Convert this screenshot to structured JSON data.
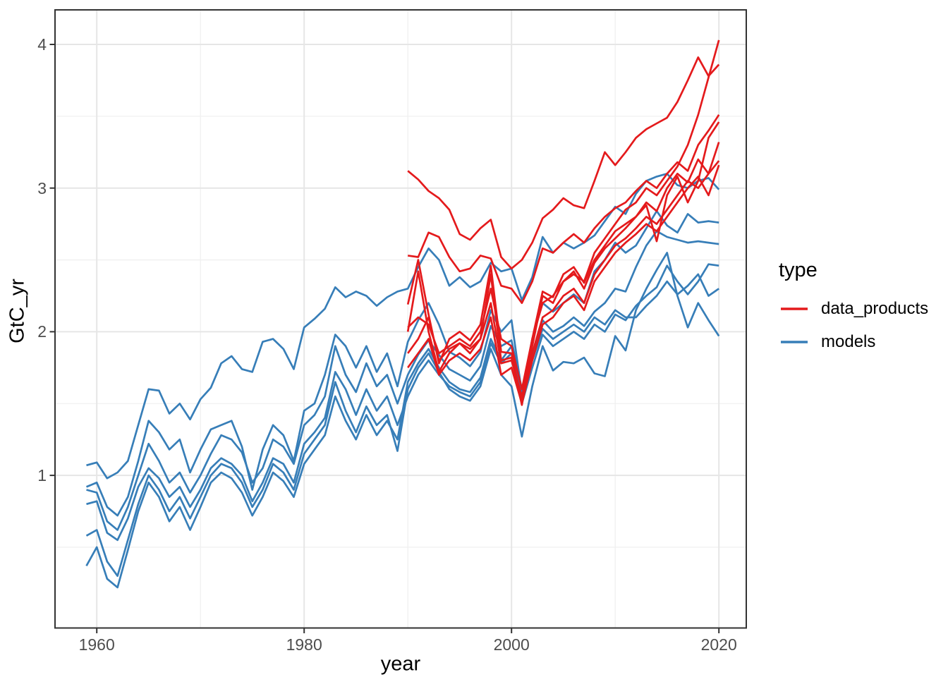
{
  "legend": {
    "title": "type",
    "items": [
      {
        "label": "data_products",
        "color": "#E41A1C"
      },
      {
        "label": "models",
        "color": "#377EB8"
      }
    ]
  },
  "chart_data": {
    "type": "line",
    "title": "",
    "xlabel": "year",
    "ylabel": "GtC_yr",
    "xlim": [
      1956,
      2022.6
    ],
    "ylim": [
      -0.06,
      4.24
    ],
    "x_ticks": [
      1960,
      1980,
      2000,
      2020
    ],
    "y_ticks": [
      4,
      3,
      2,
      1
    ],
    "x_minor_ticks": [
      1970,
      1990,
      2010
    ],
    "y_minor_ticks": [
      0.5,
      1.5,
      2.5,
      3.5
    ],
    "grid": true,
    "legend_position": "right",
    "colors": {
      "models": "#377EB8",
      "data_products": "#E41A1C"
    },
    "series": [
      {
        "name": "model_1",
        "group": "models",
        "start_year": 1959,
        "values": [
          1.07,
          1.09,
          0.98,
          1.02,
          1.1,
          1.35,
          1.6,
          1.59,
          1.43,
          1.5,
          1.39,
          1.53,
          1.61,
          1.78,
          1.83,
          1.74,
          1.72,
          1.93,
          1.95,
          1.88,
          1.74,
          2.03,
          2.09,
          2.16,
          2.31,
          2.24,
          2.28,
          2.25,
          2.18,
          2.24,
          2.28,
          2.3,
          2.45,
          2.58,
          2.5,
          2.32,
          2.38,
          2.31,
          2.35,
          2.48,
          2.42,
          2.44,
          2.22,
          2.38,
          2.66,
          2.55,
          2.62,
          2.58,
          2.62,
          2.67,
          2.77,
          2.87,
          2.82,
          2.96,
          3.05,
          3.08,
          3.1,
          3.02,
          3.0,
          3.05,
          3.07,
          2.99
        ]
      },
      {
        "name": "model_2",
        "group": "models",
        "start_year": 1959,
        "values": [
          0.92,
          0.95,
          0.78,
          0.72,
          0.85,
          1.1,
          1.38,
          1.3,
          1.18,
          1.25,
          1.02,
          1.18,
          1.32,
          1.35,
          1.38,
          1.2,
          0.9,
          1.18,
          1.35,
          1.28,
          1.1,
          1.45,
          1.5,
          1.7,
          1.98,
          1.9,
          1.75,
          1.9,
          1.72,
          1.85,
          1.62,
          1.93,
          2.08,
          2.2,
          2.05,
          1.86,
          1.82,
          1.76,
          1.86,
          2.15,
          2.0,
          2.08,
          1.57,
          1.95,
          2.2,
          2.14,
          2.2,
          2.26,
          2.2,
          2.42,
          2.5,
          2.62,
          2.55,
          2.6,
          2.72,
          2.84,
          2.74,
          2.69,
          2.82,
          2.76,
          2.77,
          2.76
        ]
      },
      {
        "name": "model_3",
        "group": "models",
        "start_year": 1959,
        "values": [
          0.9,
          0.88,
          0.68,
          0.62,
          0.78,
          1.0,
          1.22,
          1.1,
          0.95,
          1.02,
          0.88,
          1.0,
          1.15,
          1.28,
          1.25,
          1.16,
          0.95,
          1.05,
          1.25,
          1.2,
          1.08,
          1.35,
          1.42,
          1.55,
          1.9,
          1.7,
          1.58,
          1.78,
          1.62,
          1.7,
          1.5,
          1.7,
          1.84,
          1.94,
          1.84,
          1.74,
          1.7,
          1.66,
          1.76,
          2.04,
          1.9,
          1.94,
          1.6,
          1.84,
          2.08,
          2.0,
          2.04,
          2.1,
          2.04,
          2.14,
          2.2,
          2.3,
          2.28,
          2.45,
          2.6,
          2.7,
          2.66,
          2.64,
          2.62,
          2.63,
          2.62,
          2.61
        ]
      },
      {
        "name": "model_4",
        "group": "models",
        "start_year": 1959,
        "values": [
          0.8,
          0.82,
          0.6,
          0.55,
          0.7,
          0.92,
          1.05,
          0.98,
          0.85,
          0.92,
          0.78,
          0.9,
          1.05,
          1.12,
          1.08,
          1.0,
          0.82,
          0.95,
          1.12,
          1.08,
          0.95,
          1.22,
          1.3,
          1.4,
          1.72,
          1.6,
          1.42,
          1.6,
          1.45,
          1.55,
          1.35,
          1.55,
          1.7,
          1.8,
          1.7,
          1.62,
          1.58,
          1.55,
          1.65,
          1.92,
          1.78,
          1.85,
          1.5,
          1.75,
          1.98,
          1.9,
          1.95,
          2.0,
          1.95,
          2.05,
          2.0,
          2.12,
          2.08,
          2.18,
          2.25,
          2.31,
          2.46,
          2.35,
          2.26,
          2.35,
          2.47,
          2.46
        ]
      },
      {
        "name": "model_5",
        "group": "models",
        "start_year": 1959,
        "values": [
          0.58,
          0.62,
          0.4,
          0.3,
          0.55,
          0.8,
          1.0,
          0.9,
          0.75,
          0.85,
          0.7,
          0.85,
          1.0,
          1.08,
          1.05,
          0.95,
          0.78,
          0.9,
          1.08,
          1.02,
          0.9,
          1.15,
          1.25,
          1.35,
          1.65,
          1.45,
          1.3,
          1.48,
          1.35,
          1.42,
          1.17,
          1.6,
          1.75,
          1.85,
          1.72,
          1.6,
          1.55,
          1.52,
          1.62,
          1.88,
          1.7,
          1.62,
          1.27,
          1.62,
          1.9,
          1.73,
          1.79,
          1.78,
          1.82,
          1.71,
          1.69,
          1.97,
          1.87,
          2.15,
          2.3,
          2.43,
          2.55,
          2.25,
          2.03,
          2.2,
          2.08,
          1.97
        ]
      },
      {
        "name": "model_6",
        "group": "models",
        "start_year": 1959,
        "values": [
          0.37,
          0.5,
          0.28,
          0.22,
          0.48,
          0.75,
          0.95,
          0.85,
          0.68,
          0.78,
          0.62,
          0.78,
          0.95,
          1.02,
          0.98,
          0.88,
          0.72,
          0.85,
          1.02,
          0.96,
          0.85,
          1.08,
          1.18,
          1.28,
          1.55,
          1.38,
          1.25,
          1.42,
          1.28,
          1.38,
          1.25,
          1.65,
          1.78,
          1.88,
          1.75,
          1.65,
          1.6,
          1.58,
          1.68,
          1.95,
          1.8,
          1.9,
          1.55,
          1.8,
          2.02,
          1.95,
          2.0,
          2.05,
          2.0,
          2.1,
          2.05,
          2.15,
          2.1,
          2.1,
          2.18,
          2.25,
          2.35,
          2.26,
          2.32,
          2.4,
          2.25,
          2.3
        ]
      },
      {
        "name": "data_product_1",
        "group": "data_products",
        "start_year": 1990,
        "values": [
          3.12,
          3.06,
          2.98,
          2.93,
          2.85,
          2.68,
          2.64,
          2.72,
          2.78,
          2.52,
          2.44,
          2.5,
          2.62,
          2.79,
          2.85,
          2.93,
          2.88,
          2.86,
          3.05,
          3.25,
          3.16,
          3.25,
          3.35,
          3.41,
          3.45,
          3.49,
          3.6,
          3.75,
          3.91,
          3.78,
          3.86
        ]
      },
      {
        "name": "data_product_2",
        "group": "data_products",
        "start_year": 1990,
        "values": [
          2.53,
          2.52,
          2.69,
          2.66,
          2.52,
          2.42,
          2.44,
          2.53,
          2.51,
          2.32,
          2.3,
          2.2,
          2.35,
          2.58,
          2.55,
          2.62,
          2.68,
          2.62,
          2.72,
          2.8,
          2.86,
          2.9,
          2.98,
          3.05,
          3.0,
          3.1,
          3.18,
          3.12,
          3.3,
          3.4,
          3.51
        ]
      },
      {
        "name": "data_product_3",
        "group": "data_products",
        "start_year": 1990,
        "values": [
          2.19,
          2.5,
          2.12,
          1.78,
          1.95,
          2.0,
          1.94,
          2.05,
          2.46,
          1.86,
          1.85,
          1.52,
          1.95,
          2.28,
          2.24,
          2.4,
          2.45,
          2.34,
          2.5,
          2.6,
          2.7,
          2.75,
          2.8,
          2.9,
          2.84,
          3.0,
          3.1,
          3.04,
          3.2,
          3.1,
          3.32
        ]
      },
      {
        "name": "data_product_4",
        "group": "data_products",
        "start_year": 1990,
        "values": [
          2.03,
          2.1,
          2.05,
          1.85,
          1.9,
          1.95,
          1.9,
          2.0,
          2.3,
          1.95,
          1.9,
          1.6,
          1.95,
          2.2,
          2.25,
          2.35,
          2.4,
          2.35,
          2.55,
          2.65,
          2.75,
          2.85,
          2.9,
          3.0,
          2.95,
          3.05,
          3.15,
          3.3,
          3.51,
          3.77,
          4.03
        ]
      },
      {
        "name": "data_product_5",
        "group": "data_products",
        "start_year": 1990,
        "values": [
          2.0,
          2.42,
          2.0,
          1.72,
          1.85,
          1.92,
          1.88,
          1.95,
          2.4,
          1.8,
          1.82,
          1.49,
          1.9,
          2.25,
          2.2,
          2.35,
          2.42,
          2.3,
          2.48,
          2.58,
          2.65,
          2.72,
          2.8,
          2.88,
          2.63,
          2.95,
          3.08,
          2.9,
          3.05,
          3.35,
          3.46
        ]
      },
      {
        "name": "data_product_6",
        "group": "data_products",
        "start_year": 1990,
        "values": [
          1.85,
          1.95,
          2.1,
          1.8,
          1.88,
          1.92,
          1.85,
          1.95,
          2.2,
          1.78,
          1.8,
          1.55,
          1.85,
          2.1,
          2.15,
          2.25,
          2.3,
          2.2,
          2.4,
          2.5,
          2.6,
          2.65,
          2.72,
          2.8,
          2.75,
          2.85,
          2.95,
          3.05,
          3.0,
          3.1,
          3.19
        ]
      },
      {
        "name": "data_product_7",
        "group": "data_products",
        "start_year": 1990,
        "values": [
          1.75,
          1.85,
          1.95,
          1.7,
          1.8,
          1.85,
          1.8,
          1.88,
          2.1,
          1.7,
          1.75,
          1.5,
          1.8,
          2.05,
          2.1,
          2.2,
          2.25,
          2.15,
          2.35,
          2.45,
          2.55,
          2.62,
          2.68,
          2.75,
          2.7,
          2.8,
          2.9,
          3.0,
          3.08,
          2.95,
          3.16
        ]
      }
    ]
  }
}
